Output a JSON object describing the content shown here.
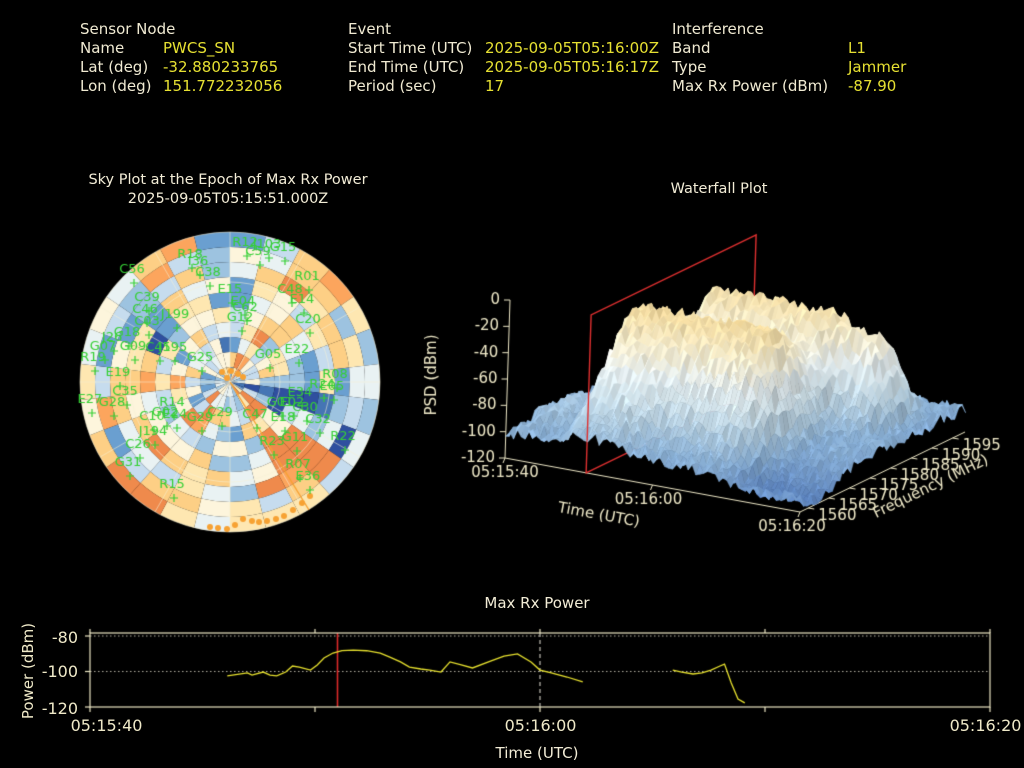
{
  "app": {
    "background": "#000000",
    "label_color": "#f0ead2",
    "value_color": "#e6e032"
  },
  "header": {
    "sensor_node": {
      "title": "Sensor Node",
      "rows": [
        {
          "label": "Name",
          "value": "PWCS_SN"
        },
        {
          "label": "Lat (deg)",
          "value": "-32.880233765"
        },
        {
          "label": "Lon (deg)",
          "value": "151.772232056"
        }
      ]
    },
    "event": {
      "title": "Event",
      "rows": [
        {
          "label": "Start Time (UTC)",
          "value": "2025-09-05T05:16:00Z"
        },
        {
          "label": "End Time (UTC)",
          "value": "2025-09-05T05:16:17Z"
        },
        {
          "label": "Period (sec)",
          "value": "17"
        }
      ]
    },
    "interference": {
      "title": "Interference",
      "rows": [
        {
          "label": "Band",
          "value": "L1"
        },
        {
          "label": "Type",
          "value": "Jammer"
        },
        {
          "label": "Max Rx Power (dBm)",
          "value": "-87.90"
        }
      ]
    }
  },
  "sky_plot": {
    "title": "Sky Plot at the Epoch of Max Rx Power",
    "subtitle": "2025-09-05T05:15:51.000Z"
  },
  "waterfall": {
    "title": "Waterfall Plot"
  },
  "power_plot": {
    "title": "Max Rx Power",
    "ylabel": "Power (dBm)",
    "xlabel": "Time (UTC)",
    "x_tick_labels": [
      "05:15:40",
      "05:16:00",
      "05:16:20"
    ],
    "y_tick_labels": [
      "-80",
      "-100",
      "-120"
    ]
  },
  "chart_data": [
    {
      "id": "sky_plot",
      "type": "heatmap",
      "projection": "polar",
      "title": "Sky Plot at the Epoch of Max Rx Power",
      "subtitle": "2025-09-05T05:15:51.000Z",
      "description": "Polar sky map of received interference power (RdYlBu-style cells), green GNSS satellite labels with + markers, orange jammer bearing line and horizon detections",
      "palette": [
        "#2f4f9f",
        "#4575b4",
        "#6a9fd0",
        "#9dc3e0",
        "#c6dcee",
        "#e9f2f3",
        "#fdf5dc",
        "#fee7b1",
        "#fdcf85",
        "#fca55d",
        "#ef8a4c"
      ],
      "grid_color": "rgba(246,240,214,0.55)",
      "label_color": "#35d035",
      "marker_color": "#f7a233",
      "azimuth_sectors": 26,
      "radial_rings": 10,
      "rings_drawn": 3,
      "spokes_deg": 30,
      "center": [
        158,
        158
      ],
      "radius": 150,
      "bearing_line": {
        "from": [
          158,
          158
        ],
        "to": [
          237,
          286
        ]
      },
      "center_detections": [
        [
          150,
          148
        ],
        [
          159,
          147
        ],
        [
          166,
          150
        ],
        [
          155,
          154
        ],
        [
          171,
          153
        ]
      ],
      "horizon_detections": [
        [
          138,
          303
        ],
        [
          146,
          304
        ],
        [
          155,
          305
        ],
        [
          163,
          301
        ],
        [
          171,
          295
        ],
        [
          180,
          297
        ],
        [
          187,
          298
        ],
        [
          195,
          297
        ],
        [
          204,
          295
        ],
        [
          212,
          292
        ],
        [
          221,
          286
        ],
        [
          230,
          279
        ],
        [
          238,
          272
        ]
      ],
      "satellites": [
        {
          "id": "C56",
          "x": 60,
          "y": 46
        },
        {
          "id": "R18",
          "x": 118,
          "y": 31
        },
        {
          "id": "I36",
          "x": 126,
          "y": 38
        },
        {
          "id": "C38",
          "x": 136,
          "y": 49
        },
        {
          "id": "C39",
          "x": 75,
          "y": 74
        },
        {
          "id": "C46",
          "x": 73,
          "y": 86
        },
        {
          "id": "C03",
          "x": 75,
          "y": 98
        },
        {
          "id": "J199",
          "x": 103,
          "y": 91
        },
        {
          "id": "G18",
          "x": 55,
          "y": 109
        },
        {
          "id": "J26",
          "x": 40,
          "y": 114
        },
        {
          "id": "G07",
          "x": 31,
          "y": 123
        },
        {
          "id": "G09",
          "x": 61,
          "y": 123
        },
        {
          "id": "C45",
          "x": 86,
          "y": 124
        },
        {
          "id": "J195",
          "x": 101,
          "y": 124
        },
        {
          "id": "G25",
          "x": 128,
          "y": 134
        },
        {
          "id": "R19",
          "x": 21,
          "y": 134
        },
        {
          "id": "E19",
          "x": 46,
          "y": 149
        },
        {
          "id": "R12",
          "x": 173,
          "y": 19
        },
        {
          "id": "J103",
          "x": 195,
          "y": 21
        },
        {
          "id": "G15",
          "x": 211,
          "y": 24
        },
        {
          "id": "C59",
          "x": 186,
          "y": 28
        },
        {
          "id": "R01",
          "x": 235,
          "y": 53
        },
        {
          "id": "C48",
          "x": 218,
          "y": 66
        },
        {
          "id": "E14",
          "x": 230,
          "y": 76
        },
        {
          "id": "E15",
          "x": 158,
          "y": 66
        },
        {
          "id": "E04",
          "x": 171,
          "y": 78
        },
        {
          "id": "C62",
          "x": 173,
          "y": 84
        },
        {
          "id": "G12",
          "x": 168,
          "y": 94
        },
        {
          "id": "C20",
          "x": 236,
          "y": 96
        },
        {
          "id": "G05",
          "x": 196,
          "y": 131
        },
        {
          "id": "E22",
          "x": 225,
          "y": 126
        },
        {
          "id": "R08",
          "x": 263,
          "y": 151
        },
        {
          "id": "C35",
          "x": 53,
          "y": 168
        },
        {
          "id": "E27",
          "x": 18,
          "y": 176
        },
        {
          "id": "G28",
          "x": 40,
          "y": 179
        },
        {
          "id": "R14",
          "x": 100,
          "y": 179
        },
        {
          "id": "C10",
          "x": 80,
          "y": 193
        },
        {
          "id": "G02",
          "x": 93,
          "y": 189
        },
        {
          "id": "E24",
          "x": 103,
          "y": 191
        },
        {
          "id": "G29",
          "x": 128,
          "y": 194
        },
        {
          "id": "C29",
          "x": 148,
          "y": 189
        },
        {
          "id": "J194",
          "x": 81,
          "y": 208
        },
        {
          "id": "C26",
          "x": 66,
          "y": 221
        },
        {
          "id": "G31",
          "x": 56,
          "y": 239
        },
        {
          "id": "R15",
          "x": 100,
          "y": 261
        },
        {
          "id": "E34",
          "x": 228,
          "y": 169
        },
        {
          "id": "R24",
          "x": 250,
          "y": 161
        },
        {
          "id": "E05",
          "x": 260,
          "y": 163
        },
        {
          "id": "G01",
          "x": 208,
          "y": 179
        },
        {
          "id": "E02",
          "x": 220,
          "y": 179
        },
        {
          "id": "C30",
          "x": 233,
          "y": 184
        },
        {
          "id": "C47",
          "x": 183,
          "y": 191
        },
        {
          "id": "E18",
          "x": 211,
          "y": 194
        },
        {
          "id": "C32",
          "x": 246,
          "y": 196
        },
        {
          "id": "G11",
          "x": 223,
          "y": 214
        },
        {
          "id": "R22",
          "x": 271,
          "y": 213
        },
        {
          "id": "R23",
          "x": 200,
          "y": 218
        },
        {
          "id": "R07",
          "x": 226,
          "y": 241
        },
        {
          "id": "E36",
          "x": 236,
          "y": 253
        }
      ]
    },
    {
      "id": "waterfall",
      "type": "surface",
      "title": "Waterfall Plot",
      "xlabel": "Time (UTC)",
      "ylabel": "Frequency (MHz)",
      "zlabel": "PSD (dBm)",
      "x_ticks": [
        "05:15:40",
        "05:16:00",
        "05:16:20"
      ],
      "x_tick_seconds": [
        0,
        20,
        40
      ],
      "y_ticks": [
        1560,
        1565,
        1570,
        1575,
        1580,
        1585,
        1590,
        1595
      ],
      "z_ticks": [
        0,
        -20,
        -40,
        -60,
        -80,
        -100,
        -120
      ],
      "t_range_sec": [
        0,
        40
      ],
      "f_range_mhz": [
        1558,
        1598
      ],
      "z_range_dbm": [
        -120,
        0
      ],
      "epoch_marker_sec": 11,
      "epoch_plane_color": "#e03030",
      "axis_color": "#efe9c8",
      "surface_model": {
        "baseline_dbm": -102,
        "noise_dbm": 5,
        "z_clamp": [
          -120,
          -8
        ],
        "components": [
          {
            "kind": "broad_jam",
            "center_mhz": 1573,
            "sigma_mhz": 10,
            "amp_db": 82,
            "t_on_sec": [
              6,
              9
            ],
            "t_off_sec": [
              27,
              33
            ]
          },
          {
            "kind": "ridge",
            "center_mhz": 1587,
            "sigma_mhz": 5,
            "amp_db": 66,
            "t_on_sec": [
              8,
              12
            ],
            "t_off_sec": [
              34,
              39
            ]
          },
          {
            "kind": "canyon",
            "center_mhz": 1562.5,
            "sigma_mhz": 5.5,
            "amp_db": -16,
            "t_on_sec": [
              14,
              19
            ]
          },
          {
            "kind": "bump",
            "center_mhz": 1568,
            "sigma_mhz": 8,
            "amp_db": 12,
            "t_center_sec": 3,
            "t_sigma_sec": 3
          }
        ]
      },
      "colormap_stops": [
        [
          -120,
          [
            91,
            131,
            192
          ]
        ],
        [
          -100,
          [
            143,
            182,
            220
          ]
        ],
        [
          -85,
          [
            184,
            213,
            234
          ]
        ],
        [
          -70,
          [
            217,
            236,
            245
          ]
        ],
        [
          -55,
          [
            238,
            247,
            249
          ]
        ],
        [
          -45,
          [
            250,
            247,
            228
          ]
        ],
        [
          -35,
          [
            253,
            242,
            207
          ]
        ],
        [
          -25,
          [
            251,
            231,
            180
          ]
        ],
        [
          -12,
          [
            248,
            216,
            144
          ]
        ]
      ]
    },
    {
      "id": "max_rx_power",
      "type": "line",
      "title": "Max Rx Power",
      "xlabel": "Time (UTC)",
      "ylabel": "Power (dBm)",
      "x_ticks": [
        "05:15:40",
        "05:16:00",
        "05:16:20"
      ],
      "x_tick_seconds": [
        0,
        20,
        40
      ],
      "x_minor_tick_seconds": [
        10,
        30
      ],
      "y_ticks": [
        -80,
        -100,
        -120
      ],
      "ylim": [
        -120,
        -78.3
      ],
      "x_range_sec": [
        0,
        40
      ],
      "grid_dotted_at": [
        -80,
        -100
      ],
      "epoch_line_sec": 11.0,
      "event_start_line_sec": 20.0,
      "line_color": "#e8e22e",
      "epoch_line_color": "#dd2a2a",
      "event_line_color": "#e8e6da",
      "frame_color": "#ece6c4",
      "series_segments": [
        [
          [
            6.1,
            -102.5
          ],
          [
            7.0,
            -100.8
          ],
          [
            7.2,
            -102.0
          ],
          [
            7.7,
            -100.3
          ],
          [
            8.0,
            -102.0
          ],
          [
            8.3,
            -102.5
          ],
          [
            8.7,
            -100.3
          ],
          [
            9.0,
            -96.9
          ],
          [
            9.3,
            -97.5
          ],
          [
            9.8,
            -99.2
          ],
          [
            10.1,
            -96.3
          ],
          [
            10.4,
            -92.4
          ],
          [
            10.8,
            -89.6
          ],
          [
            11.2,
            -88.2
          ],
          [
            11.7,
            -88.0
          ],
          [
            12.3,
            -88.3
          ],
          [
            12.9,
            -89.6
          ],
          [
            13.3,
            -91.8
          ],
          [
            13.8,
            -94.6
          ],
          [
            14.2,
            -97.5
          ],
          [
            14.7,
            -98.6
          ],
          [
            15.1,
            -99.2
          ],
          [
            15.6,
            -100.3
          ],
          [
            16.0,
            -94.6
          ],
          [
            16.5,
            -96.3
          ],
          [
            17.0,
            -98.0
          ],
          [
            17.8,
            -94.1
          ],
          [
            18.4,
            -91.3
          ],
          [
            19.0,
            -90.1
          ],
          [
            19.6,
            -94.6
          ],
          [
            20.0,
            -99.2
          ],
          [
            20.5,
            -100.8
          ],
          [
            21.2,
            -103.1
          ],
          [
            21.9,
            -105.9
          ]
        ],
        [
          [
            25.9,
            -99.2
          ],
          [
            26.3,
            -100.3
          ],
          [
            26.8,
            -101.4
          ],
          [
            27.2,
            -100.8
          ],
          [
            27.6,
            -99.2
          ],
          [
            28.0,
            -96.9
          ],
          [
            28.2,
            -95.8
          ],
          [
            28.5,
            -106.5
          ],
          [
            28.8,
            -115.5
          ],
          [
            29.1,
            -117.7
          ]
        ]
      ]
    }
  ]
}
